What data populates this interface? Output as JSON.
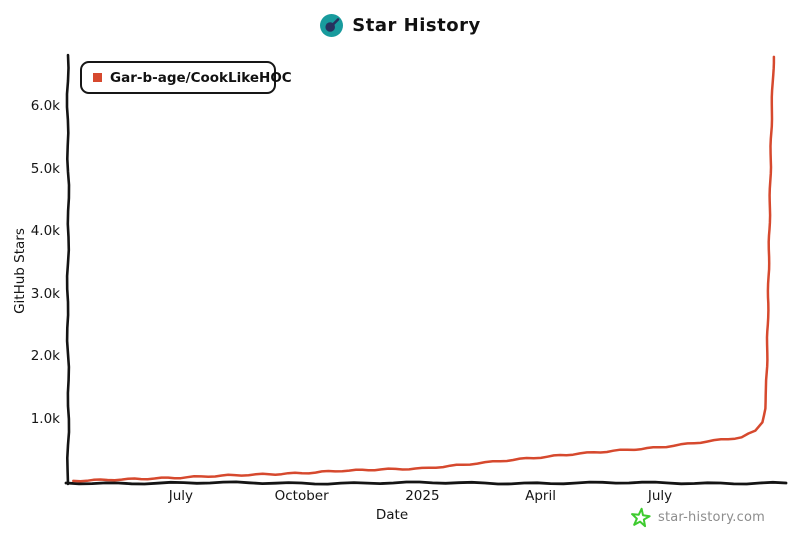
{
  "page": {
    "title": "Star History",
    "watermark": "star-history.com"
  },
  "colors": {
    "line_red": "#d6492e",
    "axis_black": "#141414",
    "icon_teal": "#189b9d",
    "icon_navy": "#27325e",
    "watermark_green": "#3ecb2f",
    "watermark_gray": "#8d8d8d"
  },
  "legend": {
    "label": "Gar-b-age/CookLikeHOC",
    "marker_color": "#d6492e"
  },
  "chart_data": {
    "type": "line",
    "title": "Star History",
    "xlabel": "Date",
    "ylabel": "GitHub Stars",
    "grid": false,
    "legend_position": "top-left",
    "x_range": [
      "2024-04-06",
      "2025-10-05"
    ],
    "ylim": [
      0,
      6820
    ],
    "x_tick_labels": [
      "July",
      "October",
      "2025",
      "April",
      "July"
    ],
    "x_tick_dates": [
      "2024-07-01",
      "2024-10-01",
      "2025-01-01",
      "2025-04-01",
      "2025-07-01"
    ],
    "y_tick_labels": [
      "1.0k",
      "2.0k",
      "3.0k",
      "4.0k",
      "5.0k",
      "6.0k"
    ],
    "y_tick_values": [
      1000,
      2000,
      3000,
      4000,
      5000,
      6000
    ],
    "series": [
      {
        "name": "Gar-b-age/CookLikeHOC",
        "color": "#d6492e",
        "points": [
          [
            "2024-04-10",
            2
          ],
          [
            "2024-05-01",
            15
          ],
          [
            "2024-06-01",
            35
          ],
          [
            "2024-07-01",
            55
          ],
          [
            "2024-08-01",
            85
          ],
          [
            "2024-09-01",
            105
          ],
          [
            "2024-10-01",
            125
          ],
          [
            "2024-11-01",
            165
          ],
          [
            "2024-12-01",
            185
          ],
          [
            "2025-01-01",
            200
          ],
          [
            "2025-02-01",
            260
          ],
          [
            "2025-03-01",
            320
          ],
          [
            "2025-04-01",
            380
          ],
          [
            "2025-05-01",
            440
          ],
          [
            "2025-06-01",
            490
          ],
          [
            "2025-07-01",
            540
          ],
          [
            "2025-08-01",
            620
          ],
          [
            "2025-09-01",
            700
          ],
          [
            "2025-09-12",
            800
          ],
          [
            "2025-09-17",
            950
          ],
          [
            "2025-09-19",
            1150
          ],
          [
            "2025-09-20",
            1500
          ],
          [
            "2025-09-21",
            2400
          ],
          [
            "2025-09-22",
            3600
          ],
          [
            "2025-09-23",
            4800
          ],
          [
            "2025-09-24",
            5800
          ],
          [
            "2025-09-25",
            6500
          ],
          [
            "2025-09-26",
            6800
          ]
        ]
      }
    ]
  }
}
